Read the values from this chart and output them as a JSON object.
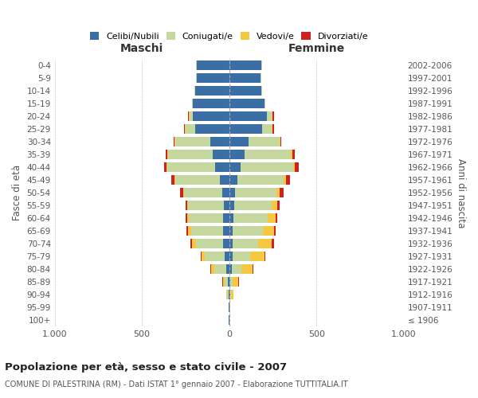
{
  "age_groups": [
    "100+",
    "95-99",
    "90-94",
    "85-89",
    "80-84",
    "75-79",
    "70-74",
    "65-69",
    "60-64",
    "55-59",
    "50-54",
    "45-49",
    "40-44",
    "35-39",
    "30-34",
    "25-29",
    "20-24",
    "15-19",
    "10-14",
    "5-9",
    "0-4"
  ],
  "birth_years": [
    "≤ 1906",
    "1907-1911",
    "1912-1916",
    "1917-1921",
    "1922-1926",
    "1927-1931",
    "1932-1936",
    "1937-1941",
    "1942-1946",
    "1947-1951",
    "1952-1956",
    "1957-1961",
    "1962-1966",
    "1967-1971",
    "1972-1976",
    "1977-1981",
    "1982-1986",
    "1987-1991",
    "1992-1996",
    "1997-2001",
    "2002-2006"
  ],
  "male_celibi": [
    1,
    1,
    5,
    8,
    15,
    25,
    35,
    35,
    35,
    30,
    40,
    55,
    80,
    95,
    110,
    195,
    210,
    210,
    195,
    185,
    185
  ],
  "male_coniugati": [
    0,
    0,
    8,
    18,
    70,
    115,
    155,
    185,
    195,
    205,
    220,
    255,
    275,
    255,
    200,
    55,
    15,
    5,
    5,
    5,
    5
  ],
  "male_vedovi": [
    0,
    0,
    5,
    10,
    20,
    20,
    25,
    15,
    10,
    5,
    5,
    5,
    5,
    5,
    5,
    5,
    5,
    0,
    0,
    0,
    0
  ],
  "male_divorziati": [
    0,
    0,
    0,
    2,
    2,
    3,
    8,
    8,
    8,
    10,
    15,
    18,
    15,
    10,
    5,
    5,
    5,
    0,
    0,
    0,
    0
  ],
  "female_celibi": [
    1,
    2,
    5,
    8,
    15,
    20,
    20,
    20,
    25,
    30,
    35,
    45,
    65,
    90,
    110,
    190,
    215,
    200,
    185,
    180,
    185
  ],
  "female_coniugati": [
    0,
    0,
    5,
    10,
    55,
    100,
    145,
    175,
    195,
    215,
    235,
    265,
    300,
    265,
    180,
    55,
    30,
    5,
    5,
    5,
    5
  ],
  "female_vedovi": [
    0,
    2,
    15,
    35,
    65,
    80,
    80,
    60,
    45,
    30,
    20,
    15,
    10,
    5,
    5,
    5,
    5,
    0,
    0,
    0,
    0
  ],
  "female_divorziati": [
    0,
    0,
    0,
    2,
    5,
    8,
    10,
    10,
    10,
    15,
    20,
    25,
    25,
    15,
    5,
    5,
    5,
    0,
    0,
    0,
    0
  ],
  "colors": {
    "celibi": "#3a6ea5",
    "coniugati": "#c5d8a0",
    "vedovi": "#f5c842",
    "divorziati": "#cc2222"
  },
  "title": "Popolazione per età, sesso e stato civile - 2007",
  "subtitle": "COMUNE DI PALESTRINA (RM) - Dati ISTAT 1° gennaio 2007 - Elaborazione TUTTITALIA.IT",
  "xlabel_left": "Maschi",
  "xlabel_right": "Femmine",
  "ylabel_left": "Fasce di età",
  "ylabel_right": "Anni di nascita",
  "xlim": 1000,
  "bg_color": "#ffffff",
  "grid_color": "#cccccc"
}
